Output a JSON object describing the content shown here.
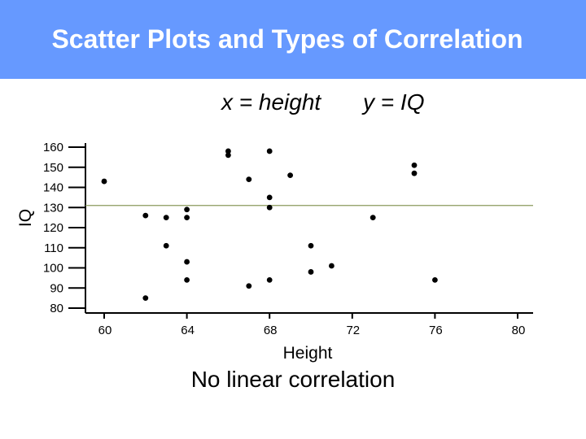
{
  "slide": {
    "title": "Scatter Plots and Types of Correlation",
    "x_variable": "x = height",
    "y_variable": "y = IQ",
    "caption": "No linear correlation",
    "header_color": "#6699ff"
  },
  "chart_data": {
    "type": "scatter",
    "xlabel": "Height",
    "ylabel": "IQ",
    "xlim": [
      60,
      80
    ],
    "ylim": [
      80,
      160
    ],
    "xticks": [
      60,
      64,
      68,
      72,
      76,
      80
    ],
    "yticks": [
      160,
      150,
      140,
      130,
      120,
      110,
      100,
      90,
      80
    ],
    "reference_line_y": 131,
    "reference_line_color": "#8a9a5b",
    "points": [
      {
        "x": 60,
        "y": 143
      },
      {
        "x": 62,
        "y": 85
      },
      {
        "x": 62,
        "y": 126
      },
      {
        "x": 63,
        "y": 125
      },
      {
        "x": 63,
        "y": 111
      },
      {
        "x": 64,
        "y": 129
      },
      {
        "x": 64,
        "y": 125
      },
      {
        "x": 64,
        "y": 103
      },
      {
        "x": 64,
        "y": 94
      },
      {
        "x": 66,
        "y": 158
      },
      {
        "x": 66,
        "y": 156
      },
      {
        "x": 67,
        "y": 144
      },
      {
        "x": 67,
        "y": 91
      },
      {
        "x": 68,
        "y": 158
      },
      {
        "x": 68,
        "y": 135
      },
      {
        "x": 68,
        "y": 130
      },
      {
        "x": 68,
        "y": 94
      },
      {
        "x": 69,
        "y": 146
      },
      {
        "x": 70,
        "y": 111
      },
      {
        "x": 70,
        "y": 98
      },
      {
        "x": 71,
        "y": 101
      },
      {
        "x": 73,
        "y": 125
      },
      {
        "x": 75,
        "y": 151
      },
      {
        "x": 75,
        "y": 147
      },
      {
        "x": 76,
        "y": 94
      }
    ]
  }
}
